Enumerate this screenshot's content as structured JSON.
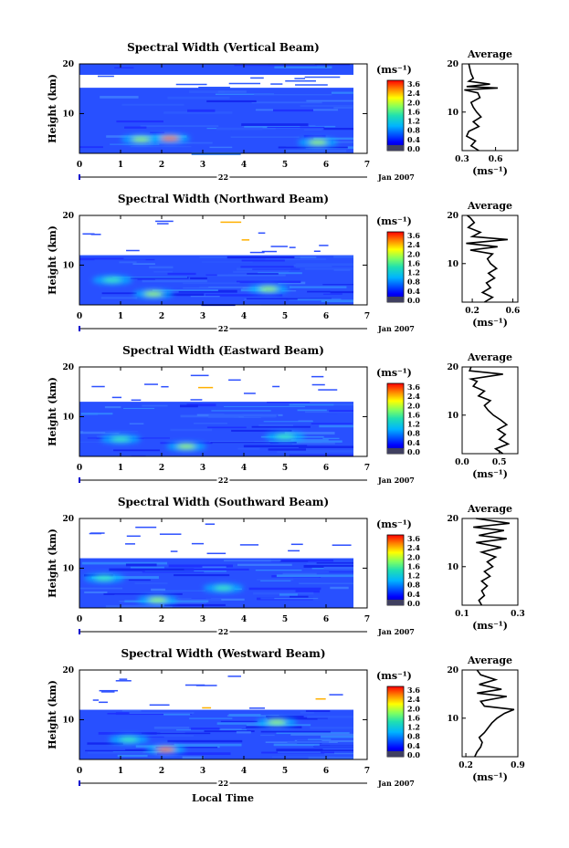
{
  "figure": {
    "xlabel": "Local Time",
    "date_left": "22",
    "date_right": "Jan 2007",
    "colorbar": {
      "unit": "(ms⁻¹)",
      "ticks": [
        "3.6",
        "2.4",
        "2.0",
        "1.6",
        "1.2",
        "0.8",
        "0.4",
        "0.0"
      ]
    },
    "avg_title": "Average",
    "avg_xlabel": "(ms⁻¹)"
  },
  "chart_data": [
    {
      "type": "heatmap",
      "title": "Spectral Width (Vertical Beam)",
      "xlabel": "Local Time",
      "ylabel": "Height (km)",
      "xlim": [
        0,
        7
      ],
      "ylim": [
        2,
        20
      ],
      "xticks": [
        "0",
        "1",
        "2",
        "3",
        "4",
        "5",
        "6",
        "7"
      ],
      "yticks": [
        "20",
        "10"
      ],
      "data_top_km": 20,
      "gap_km": [
        15.2,
        17.8
      ],
      "x_end": 6.7,
      "hotspots": [
        [
          2.2,
          5.0,
          2.6
        ],
        [
          5.8,
          4.2,
          1.4
        ],
        [
          1.5,
          4.8,
          1.2
        ]
      ],
      "avg": {
        "title": "Average",
        "xlabel": "(ms⁻¹)",
        "xlim": [
          0.3,
          0.8
        ],
        "xticks": [
          "0.3",
          "0.6"
        ],
        "xtick_values": [
          0.3,
          0.6
        ],
        "yticks": [
          "20",
          "10"
        ],
        "profile": [
          [
            2,
            0.45
          ],
          [
            3,
            0.38
          ],
          [
            4,
            0.42
          ],
          [
            5,
            0.34
          ],
          [
            6,
            0.36
          ],
          [
            7,
            0.45
          ],
          [
            8,
            0.4
          ],
          [
            9,
            0.47
          ],
          [
            10,
            0.43
          ],
          [
            11,
            0.4
          ],
          [
            12,
            0.38
          ],
          [
            13,
            0.46
          ],
          [
            14,
            0.44
          ],
          [
            14.6,
            0.32
          ],
          [
            15.0,
            0.62
          ],
          [
            15.3,
            0.34
          ],
          [
            15.8,
            0.55
          ],
          [
            16.4,
            0.36
          ],
          [
            17.0,
            0.4
          ],
          [
            18.0,
            0.38
          ],
          [
            19,
            0.37
          ],
          [
            20,
            0.36
          ]
        ]
      }
    },
    {
      "type": "heatmap",
      "title": "Spectral Width (Northward Beam)",
      "xlabel": "Local Time",
      "ylabel": "Height (km)",
      "xlim": [
        0,
        7
      ],
      "ylim": [
        2,
        20
      ],
      "xticks": [
        "0",
        "1",
        "2",
        "3",
        "4",
        "5",
        "6",
        "7"
      ],
      "yticks": [
        "20",
        "10"
      ],
      "data_top_km": 12,
      "gap_km": null,
      "x_end": 6.7,
      "hotspots": [
        [
          1.8,
          4.2,
          1.4
        ],
        [
          4.6,
          5.2,
          1.2
        ],
        [
          0.8,
          7.0,
          1.0
        ]
      ],
      "avg": {
        "title": "Average",
        "xlabel": "(ms⁻¹)",
        "xlim": [
          0.1,
          0.65
        ],
        "xticks": [
          "0.2",
          "0.6"
        ],
        "xtick_values": [
          0.2,
          0.6
        ],
        "yticks": [
          "20",
          "10"
        ],
        "profile": [
          [
            2,
            0.32
          ],
          [
            3,
            0.4
          ],
          [
            4,
            0.3
          ],
          [
            5,
            0.38
          ],
          [
            6,
            0.34
          ],
          [
            7,
            0.42
          ],
          [
            8,
            0.36
          ],
          [
            9,
            0.44
          ],
          [
            10,
            0.38
          ],
          [
            11,
            0.35
          ],
          [
            12,
            0.4
          ],
          [
            12.8,
            0.18
          ],
          [
            13.5,
            0.45
          ],
          [
            14.2,
            0.14
          ],
          [
            15.0,
            0.55
          ],
          [
            15.6,
            0.2
          ],
          [
            16.5,
            0.28
          ],
          [
            17.5,
            0.16
          ],
          [
            18.5,
            0.22
          ],
          [
            19.5,
            0.18
          ],
          [
            20,
            0.15
          ]
        ]
      }
    },
    {
      "type": "heatmap",
      "title": "Spectral Width (Eastward Beam)",
      "xlabel": "Local Time",
      "ylabel": "Height (km)",
      "xlim": [
        0,
        7
      ],
      "ylim": [
        2,
        20
      ],
      "xticks": [
        "0",
        "1",
        "2",
        "3",
        "4",
        "5",
        "6",
        "7"
      ],
      "yticks": [
        "20",
        "10"
      ],
      "data_top_km": 13,
      "gap_km": null,
      "x_end": 6.7,
      "hotspots": [
        [
          2.6,
          4.0,
          1.3
        ],
        [
          5.0,
          6.0,
          1.1
        ],
        [
          1.0,
          5.5,
          0.9
        ]
      ],
      "avg": {
        "title": "Average",
        "xlabel": "(ms⁻¹)",
        "xlim": [
          0.0,
          0.75
        ],
        "xticks": [
          "0.0",
          "0.5"
        ],
        "xtick_values": [
          0.0,
          0.5
        ],
        "yticks": [
          "20",
          "10"
        ],
        "profile": [
          [
            2,
            0.55
          ],
          [
            3,
            0.45
          ],
          [
            4,
            0.62
          ],
          [
            5,
            0.5
          ],
          [
            6,
            0.58
          ],
          [
            7,
            0.48
          ],
          [
            8,
            0.6
          ],
          [
            9,
            0.52
          ],
          [
            10,
            0.42
          ],
          [
            11,
            0.35
          ],
          [
            12,
            0.3
          ],
          [
            13,
            0.38
          ],
          [
            14,
            0.22
          ],
          [
            15,
            0.3
          ],
          [
            16,
            0.15
          ],
          [
            17,
            0.2
          ],
          [
            17.5,
            0.12
          ],
          [
            18.5,
            0.55
          ],
          [
            19.2,
            0.1
          ],
          [
            20,
            0.12
          ]
        ]
      }
    },
    {
      "type": "heatmap",
      "title": "Spectral Width (Southward Beam)",
      "xlabel": "Local Time",
      "ylabel": "Height (km)",
      "xlim": [
        0,
        7
      ],
      "ylim": [
        2,
        20
      ],
      "xticks": [
        "0",
        "1",
        "2",
        "3",
        "4",
        "5",
        "6",
        "7"
      ],
      "yticks": [
        "20",
        "10"
      ],
      "data_top_km": 12,
      "gap_km": null,
      "x_end": 6.7,
      "hotspots": [
        [
          1.9,
          3.6,
          1.5
        ],
        [
          3.5,
          6.0,
          1.0
        ],
        [
          0.6,
          8.0,
          0.9
        ]
      ],
      "avg": {
        "title": "Average",
        "xlabel": "(ms⁻¹)",
        "xlim": [
          0.1,
          0.3
        ],
        "xticks": [
          "0.1",
          "0.3"
        ],
        "xtick_values": [
          0.1,
          0.3
        ],
        "yticks": [
          "20",
          "10"
        ],
        "profile": [
          [
            2,
            0.17
          ],
          [
            3,
            0.16
          ],
          [
            4,
            0.18
          ],
          [
            5,
            0.17
          ],
          [
            6,
            0.19
          ],
          [
            7,
            0.17
          ],
          [
            8,
            0.2
          ],
          [
            9,
            0.18
          ],
          [
            10,
            0.21
          ],
          [
            11,
            0.19
          ],
          [
            12,
            0.22
          ],
          [
            13,
            0.17
          ],
          [
            14,
            0.24
          ],
          [
            15,
            0.15
          ],
          [
            15.8,
            0.26
          ],
          [
            16.5,
            0.16
          ],
          [
            17.5,
            0.25
          ],
          [
            18.2,
            0.14
          ],
          [
            19,
            0.27
          ],
          [
            20,
            0.15
          ]
        ]
      }
    },
    {
      "type": "heatmap",
      "title": "Spectral Width (Westward Beam)",
      "xlabel": "Local Time",
      "ylabel": "Height (km)",
      "xlim": [
        0,
        7
      ],
      "ylim": [
        2,
        20
      ],
      "xticks": [
        "0",
        "1",
        "2",
        "3",
        "4",
        "5",
        "6",
        "7"
      ],
      "yticks": [
        "20",
        "10"
      ],
      "data_top_km": 12,
      "gap_km": null,
      "x_end": 6.7,
      "hotspots": [
        [
          2.1,
          4.0,
          2.6
        ],
        [
          4.8,
          9.5,
          1.5
        ],
        [
          1.2,
          6.0,
          1.0
        ]
      ],
      "avg": {
        "title": "Average",
        "xlabel": "(ms⁻¹)",
        "xlim": [
          0.15,
          0.9
        ],
        "xticks": [
          "0.2",
          "0.9"
        ],
        "xtick_values": [
          0.2,
          0.9
        ],
        "yticks": [
          "20",
          "10"
        ],
        "profile": [
          [
            2,
            0.32
          ],
          [
            3,
            0.35
          ],
          [
            4,
            0.4
          ],
          [
            5,
            0.42
          ],
          [
            6,
            0.38
          ],
          [
            7,
            0.45
          ],
          [
            8,
            0.5
          ],
          [
            9,
            0.55
          ],
          [
            10,
            0.62
          ],
          [
            11,
            0.72
          ],
          [
            11.8,
            0.85
          ],
          [
            12.5,
            0.45
          ],
          [
            13.5,
            0.4
          ],
          [
            14.5,
            0.75
          ],
          [
            15.2,
            0.35
          ],
          [
            16,
            0.68
          ],
          [
            17,
            0.38
          ],
          [
            18,
            0.6
          ],
          [
            19,
            0.4
          ],
          [
            20,
            0.35
          ]
        ]
      }
    }
  ]
}
